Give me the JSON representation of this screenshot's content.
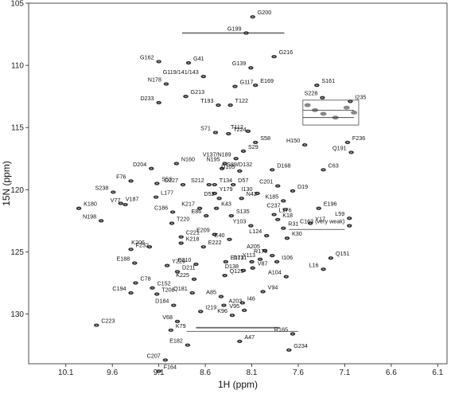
{
  "chart_data": {
    "type": "scatter",
    "title": "",
    "xlabel": "1H (ppm)",
    "ylabel": "15N (ppm)",
    "x_reversed": true,
    "y_reversed": true,
    "xlim": [
      10.5,
      6.0
    ],
    "ylim": [
      105,
      134
    ],
    "xticks": [
      10.1,
      9.6,
      9.1,
      8.6,
      8.1,
      7.6,
      7.1,
      6.6,
      6.1
    ],
    "yticks": [
      105,
      110,
      115,
      120,
      125,
      130
    ],
    "grid": false,
    "highlight_color": "#d21f1f",
    "peaks": [
      {
        "label": "G200",
        "x": 8.09,
        "y": 106.1
      },
      {
        "label": "G199",
        "x": 8.16,
        "y": 107.4
      },
      {
        "label": "G216",
        "x": 7.86,
        "y": 109.3
      },
      {
        "label": "G162",
        "x": 9.1,
        "y": 109.7
      },
      {
        "label": "G41",
        "x": 8.78,
        "y": 109.8
      },
      {
        "label": "G139",
        "x": 8.11,
        "y": 110.2
      },
      {
        "label": "S161",
        "x": 7.4,
        "y": 111.6
      },
      {
        "label": "G119/141/143",
        "x": 8.62,
        "y": 110.9
      },
      {
        "label": "E169",
        "x": 8.06,
        "y": 111.6
      },
      {
        "label": "N178",
        "x": 9.02,
        "y": 111.5
      },
      {
        "label": "G117",
        "x": 8.28,
        "y": 111.7
      },
      {
        "label": "S228",
        "x": 7.34,
        "y": 112.6
      },
      {
        "label": "I235",
        "x": 7.04,
        "y": 112.9
      },
      {
        "label": "D233",
        "x": 9.1,
        "y": 113.0
      },
      {
        "label": "G213",
        "x": 8.81,
        "y": 112.5
      },
      {
        "label": "T193",
        "x": 8.46,
        "y": 113.2
      },
      {
        "label": "T122",
        "x": 8.33,
        "y": 113.2
      },
      {
        "label": "S71",
        "x": 8.49,
        "y": 115.4
      },
      {
        "label": "T224",
        "x": 8.35,
        "y": 115.5
      },
      {
        "label": "T112",
        "x": 8.14,
        "y": 115.3
      },
      {
        "label": "S58",
        "x": 8.06,
        "y": 116.2
      },
      {
        "label": "H150",
        "x": 7.53,
        "y": 116.4
      },
      {
        "label": "F236",
        "x": 7.07,
        "y": 116.2
      },
      {
        "label": "Q191",
        "x": 7.03,
        "y": 117.0
      },
      {
        "label": "S29",
        "x": 8.19,
        "y": 116.9
      },
      {
        "label": "V137/N189",
        "x": 8.27,
        "y": 117.5
      },
      {
        "label": "N160",
        "x": 8.91,
        "y": 117.9
      },
      {
        "label": "N195",
        "x": 8.39,
        "y": 117.9
      },
      {
        "label": "S89/D132",
        "x": 8.42,
        "y": 118.3
      },
      {
        "label": "D204",
        "x": 9.18,
        "y": 118.3
      },
      {
        "label": "D168",
        "x": 7.88,
        "y": 118.4
      },
      {
        "label": "D105",
        "x": 8.23,
        "y": 118.5
      },
      {
        "label": "C63",
        "x": 7.33,
        "y": 118.4
      },
      {
        "label": "F76",
        "x": 9.4,
        "y": 119.3
      },
      {
        "label": "S53",
        "x": 9.12,
        "y": 119.5
      },
      {
        "label": "D227",
        "x": 8.84,
        "y": 119.6
      },
      {
        "label": "T134",
        "x": 8.5,
        "y": 119.6
      },
      {
        "label": "S212",
        "x": 8.56,
        "y": 119.6
      },
      {
        "label": "D57",
        "x": 8.3,
        "y": 119.6
      },
      {
        "label": "C201",
        "x": 7.82,
        "y": 119.7
      },
      {
        "label": "D19",
        "x": 7.66,
        "y": 120.1
      },
      {
        "label": "S238",
        "x": 9.59,
        "y": 120.2
      },
      {
        "label": "Y179",
        "x": 8.5,
        "y": 120.3
      },
      {
        "label": "I130",
        "x": 8.04,
        "y": 120.3
      },
      {
        "label": "L177",
        "x": 9.13,
        "y": 120.6
      },
      {
        "label": "D52",
        "x": 8.45,
        "y": 120.7
      },
      {
        "label": "N42",
        "x": 8.21,
        "y": 120.7
      },
      {
        "label": "K185",
        "x": 7.76,
        "y": 120.9
      },
      {
        "label": "V187",
        "x": 9.51,
        "y": 121.1
      },
      {
        "label": "V77",
        "x": 9.46,
        "y": 121.2
      },
      {
        "label": "K180",
        "x": 9.96,
        "y": 121.5
      },
      {
        "label": "K217",
        "x": 8.66,
        "y": 121.5
      },
      {
        "label": "K43",
        "x": 8.48,
        "y": 121.5
      },
      {
        "label": "C237",
        "x": 7.74,
        "y": 121.6
      },
      {
        "label": "E196",
        "x": 7.38,
        "y": 121.5
      },
      {
        "label": "C186",
        "x": 8.95,
        "y": 121.8
      },
      {
        "label": "L176",
        "x": 7.86,
        "y": 122.0
      },
      {
        "label": "E86",
        "x": 8.59,
        "y": 122.1
      },
      {
        "label": "S135",
        "x": 8.32,
        "y": 122.1
      },
      {
        "label": "N198",
        "x": 9.72,
        "y": 122.5
      },
      {
        "label": "K18",
        "x": 7.82,
        "y": 122.4
      },
      {
        "label": "L59",
        "x": 7.05,
        "y": 122.3
      },
      {
        "label": "Y17",
        "x": 7.47,
        "y": 122.7
      },
      {
        "label": "C163 (very weak)",
        "x": 7.05,
        "y": 122.9
      },
      {
        "label": "T220",
        "x": 8.96,
        "y": 122.7
      },
      {
        "label": "Y103",
        "x": 8.11,
        "y": 122.9
      },
      {
        "label": "R31",
        "x": 7.76,
        "y": 123.1
      },
      {
        "label": "E209",
        "x": 8.5,
        "y": 123.6
      },
      {
        "label": "C221",
        "x": 8.86,
        "y": 123.8
      },
      {
        "label": "L124",
        "x": 7.94,
        "y": 123.7
      },
      {
        "label": "K30",
        "x": 7.72,
        "y": 123.9
      },
      {
        "label": "E40",
        "x": 8.34,
        "y": 124.0
      },
      {
        "label": "K218",
        "x": 8.86,
        "y": 124.3
      },
      {
        "label": "K206",
        "x": 9.2,
        "y": 124.6
      },
      {
        "label": "E222",
        "x": 8.62,
        "y": 124.6
      },
      {
        "label": "A205",
        "x": 7.96,
        "y": 124.9
      },
      {
        "label": "F232",
        "x": 9.4,
        "y": 124.8
      },
      {
        "label": "R170",
        "x": 7.88,
        "y": 125.3
      },
      {
        "label": "Q151",
        "x": 7.25,
        "y": 125.5
      },
      {
        "label": "Y113",
        "x": 8.01,
        "y": 125.6
      },
      {
        "label": "E171",
        "x": 8.38,
        "y": 125.8
      },
      {
        "label": "D131",
        "x": 8.1,
        "y": 125.8
      },
      {
        "label": "I106",
        "x": 7.83,
        "y": 125.8
      },
      {
        "label": "E188",
        "x": 9.36,
        "y": 125.9
      },
      {
        "label": "Y229",
        "x": 9.01,
        "y": 126.1
      },
      {
        "label": "E210",
        "x": 8.7,
        "y": 126.0
      },
      {
        "label": "V87",
        "x": 8.09,
        "y": 126.3
      },
      {
        "label": "L16",
        "x": 7.33,
        "y": 126.4
      },
      {
        "label": "D211",
        "x": 8.9,
        "y": 126.6
      },
      {
        "label": "D138",
        "x": 8.19,
        "y": 126.5
      },
      {
        "label": "Q125",
        "x": 8.39,
        "y": 126.9
      },
      {
        "label": "A104",
        "x": 7.73,
        "y": 127.0
      },
      {
        "label": "C78",
        "x": 9.35,
        "y": 127.5
      },
      {
        "label": "K225",
        "x": 8.72,
        "y": 127.2
      },
      {
        "label": "C152",
        "x": 9.17,
        "y": 127.9
      },
      {
        "label": "C194",
        "x": 9.4,
        "y": 128.3
      },
      {
        "label": "T208",
        "x": 9.12,
        "y": 128.4
      },
      {
        "label": "Q181",
        "x": 8.74,
        "y": 128.3
      },
      {
        "label": "V94",
        "x": 7.98,
        "y": 128.2
      },
      {
        "label": "A85",
        "x": 8.43,
        "y": 128.6
      },
      {
        "label": "I46",
        "x": 8.2,
        "y": 129.1
      },
      {
        "label": "D184",
        "x": 8.94,
        "y": 129.3
      },
      {
        "label": "A203",
        "x": 8.4,
        "y": 129.3
      },
      {
        "label": "V95",
        "x": 8.18,
        "y": 129.7
      },
      {
        "label": "I219",
        "x": 8.65,
        "y": 129.8
      },
      {
        "label": "K96",
        "x": 8.31,
        "y": 130.1
      },
      {
        "label": "C223",
        "x": 9.77,
        "y": 130.9
      },
      {
        "label": "V68",
        "x": 8.9,
        "y": 130.6
      },
      {
        "label": "K79",
        "x": 8.97,
        "y": 131.3
      },
      {
        "label": "R165",
        "x": 7.66,
        "y": 131.6
      },
      {
        "label": "A47",
        "x": 8.23,
        "y": 132.2
      },
      {
        "label": "E182",
        "x": 8.79,
        "y": 132.5
      },
      {
        "label": "G234",
        "x": 7.7,
        "y": 132.9,
        "highlight": true
      },
      {
        "label": "C207",
        "x": 9.03,
        "y": 133.7
      },
      {
        "label": "F164",
        "x": 9.1,
        "y": 134.6
      }
    ]
  }
}
